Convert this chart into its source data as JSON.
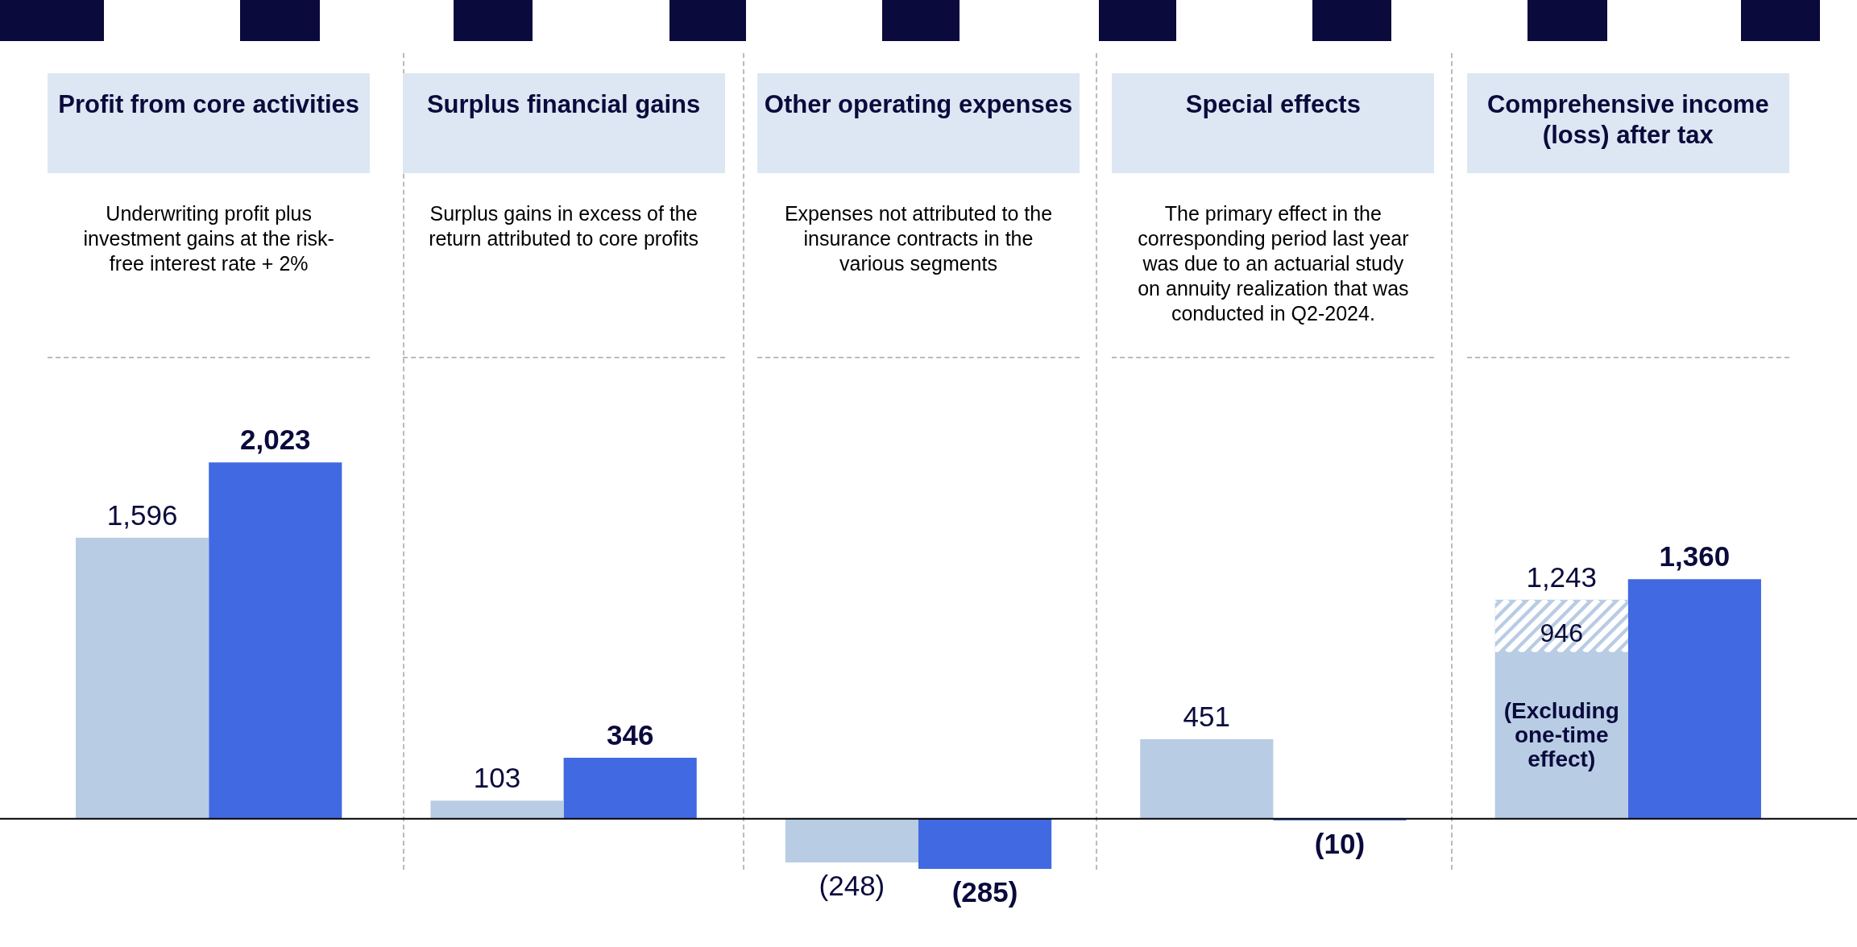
{
  "chart_data": {
    "type": "bar",
    "categories": [
      "Profit from core activities",
      "Surplus financial gains",
      "Other operating expenses",
      "Special effects",
      "Comprehensive income (loss) after tax"
    ],
    "series": [
      {
        "color": "#b8cce4",
        "values": [
          1596,
          103,
          -248,
          451,
          1243
        ],
        "value_labels": [
          "1,596",
          "103",
          "(248)",
          "451",
          "1,243"
        ]
      },
      {
        "color": "#4169e1",
        "values": [
          2023,
          346,
          -285,
          -10,
          1360
        ],
        "value_labels": [
          "2,023",
          "346",
          "(285)",
          "(10)",
          "1,360"
        ]
      }
    ],
    "tick_labels": false,
    "legend": false,
    "annotations": [
      "Underwriting profit plus investment gains at the risk-free interest rate + 2%",
      "Surplus gains in excess of the return attributed to core profits",
      "Expenses not attributed to the insurance contracts in the various segments",
      "The primary effect in the corresponding period last year was due to an actuarial study on annuity realization that was conducted in Q2-2024.",
      {
        "text": "946",
        "x": "Comprehensive income (loss) after tax",
        "y": 946
      },
      {
        "text": "(Excluding one-time effect)",
        "x": "Comprehensive income (loss) after tax",
        "y": 946
      }
    ]
  }
}
